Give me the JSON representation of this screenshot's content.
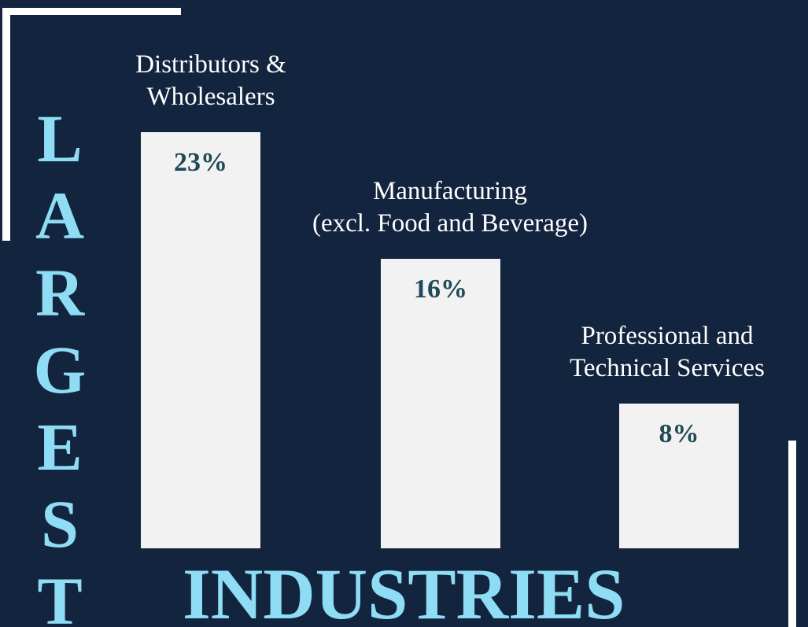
{
  "chart_data": {
    "type": "bar",
    "title": [
      "LARGEST",
      "INDUSTRIES"
    ],
    "categories": [
      "Distributors &\nWholesalers",
      "Manufacturing\n(excl. Food and Beverage)",
      "Professional and\nTechnical Services"
    ],
    "values": [
      23,
      16,
      8
    ],
    "value_labels": [
      "23%",
      "16%",
      "8%"
    ],
    "color": "#f2f2f2"
  }
}
